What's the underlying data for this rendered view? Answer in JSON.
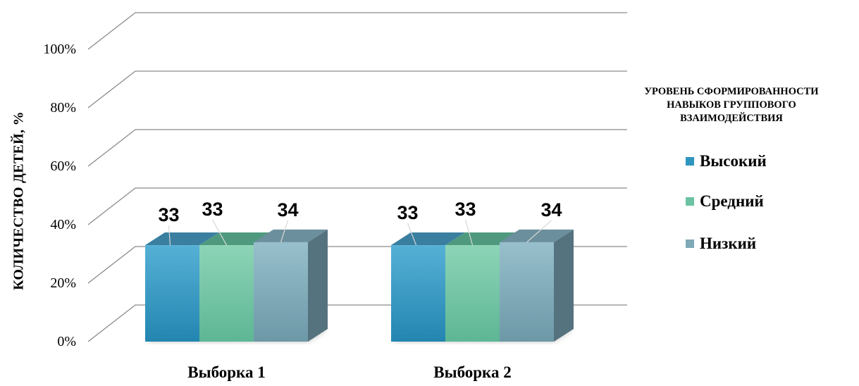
{
  "chart_data": {
    "type": "bar",
    "categories": [
      "Выборка 1",
      "Выборка 2"
    ],
    "series": [
      {
        "name": "Высокий",
        "values": [
          33,
          33
        ],
        "color": "#2e95bf"
      },
      {
        "name": "Средний",
        "values": [
          33,
          33
        ],
        "color": "#6cc3a2"
      },
      {
        "name": "Низкий",
        "values": [
          34,
          34
        ],
        "color": "#7fa9b7"
      }
    ],
    "ylabel": "КОЛИЧЕСТВО ДЕТЕЙ, %",
    "yticks": [
      "0%",
      "20%",
      "40%",
      "60%",
      "80%",
      "100%"
    ],
    "ylim": [
      0,
      100
    ],
    "legend_title": "УРОВЕНЬ СФОРМИРОВАННОСТИ НАВЫКОВ ГРУППОВОГО ВЗАИМОДЕЙСТВИЯ",
    "legend_position": "right",
    "grid": true,
    "style": "3d-clustered-column"
  }
}
